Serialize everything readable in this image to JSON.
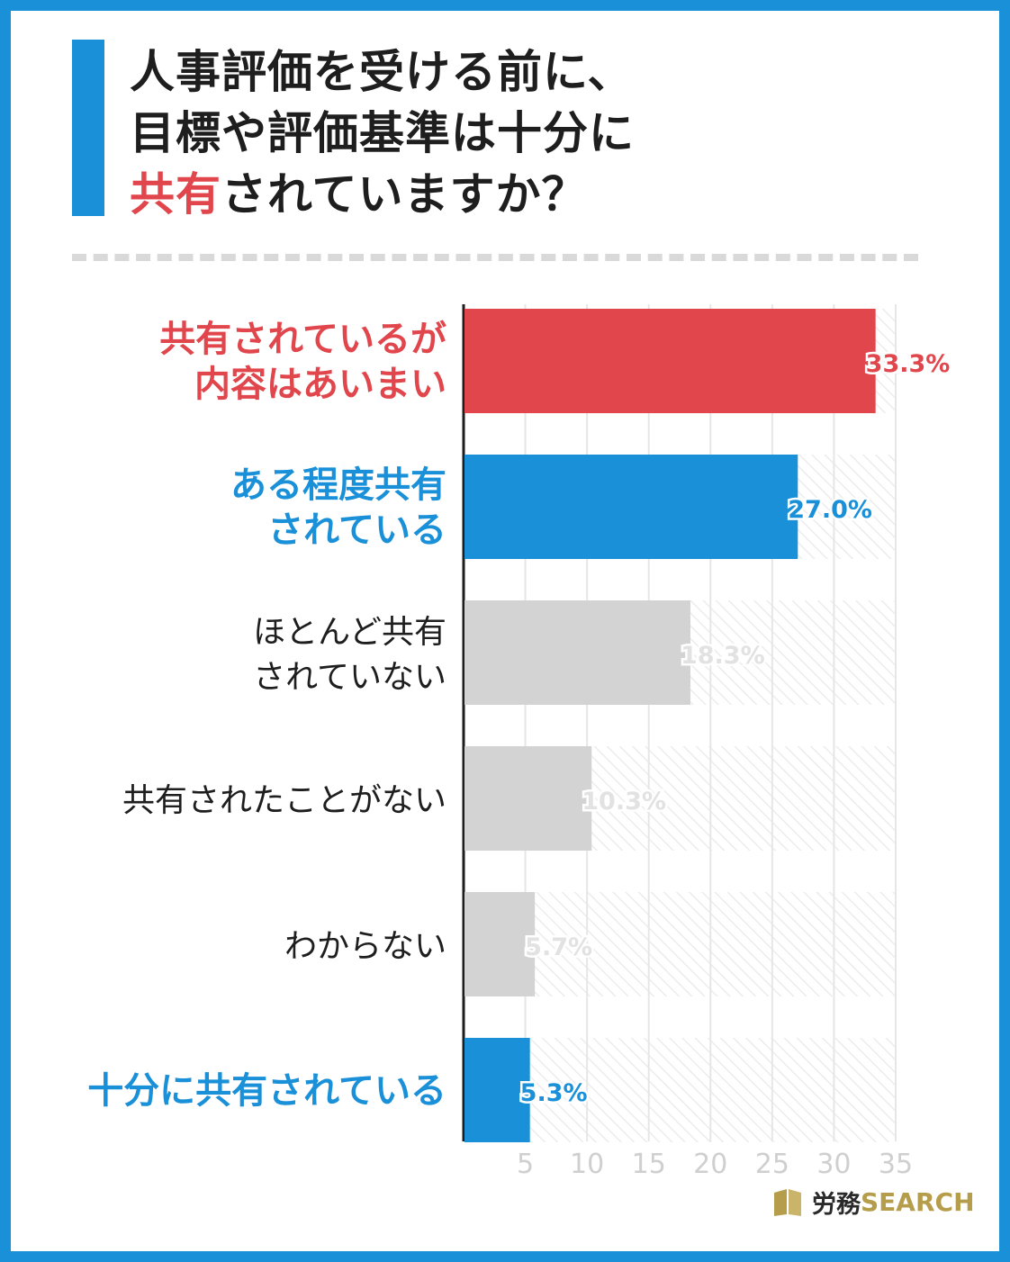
{
  "title": {
    "line1": "人事評価を受ける前に、",
    "line2": "目標や評価基準は十分に",
    "line3_accent": "共有",
    "line3_rest": "されていますか？"
  },
  "colors": {
    "red": "#e0464c",
    "blue": "#1a90d9",
    "gray": "#d3d3d3",
    "gray_label": "#e2e2e2",
    "gold": "#b59d4c"
  },
  "chart_data": {
    "type": "bar",
    "orientation": "horizontal",
    "categories": [
      [
        "共有されているが",
        "内容はあいまい"
      ],
      [
        "ある程度共有",
        "されている"
      ],
      [
        "ほとんど共有",
        "されていない"
      ],
      [
        "共有されたことがない"
      ],
      [
        "わからない"
      ],
      [
        "十分に共有されている"
      ]
    ],
    "values": [
      33.3,
      27.0,
      18.3,
      10.3,
      5.7,
      5.3
    ],
    "value_labels": [
      "33.3%",
      "27.0%",
      "18.3%",
      "10.3%",
      "5.7%",
      "5.3%"
    ],
    "bar_colors": [
      "red",
      "blue",
      "gray",
      "gray",
      "gray",
      "blue"
    ],
    "label_colors": [
      "red",
      "blue",
      "dark",
      "dark",
      "dark",
      "blue"
    ],
    "xlim": [
      0,
      35
    ],
    "xticks": [
      5,
      10,
      15,
      20,
      25,
      30,
      35
    ],
    "grid": true
  },
  "logo": {
    "jp": "労務",
    "en": "SEARCH"
  }
}
